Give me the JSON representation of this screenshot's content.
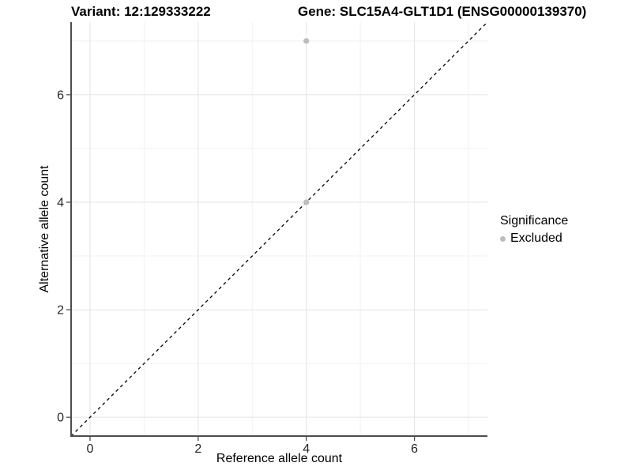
{
  "chart_data": {
    "type": "scatter",
    "title_left": "Variant: 12:129333222",
    "title_right": "Gene: SLC15A4-GLT1D1 (ENSG00000139370)",
    "xlabel": "Reference allele count",
    "ylabel": "Alternative allele count",
    "xlim": [
      -0.35,
      7.35
    ],
    "ylim": [
      -0.35,
      7.35
    ],
    "x_ticks": [
      0,
      2,
      4,
      6
    ],
    "y_ticks": [
      0,
      2,
      4,
      6
    ],
    "x_minor": [
      1,
      3,
      5,
      7
    ],
    "y_minor": [
      1,
      3,
      5,
      7
    ],
    "grid": true,
    "points": [
      {
        "x": 4,
        "y": 4,
        "series": "Excluded"
      },
      {
        "x": 4,
        "y": 7,
        "series": "Excluded"
      }
    ],
    "point_radius": 3.6,
    "identity_line": {
      "slope": 1,
      "intercept": 0,
      "style": "dashed"
    },
    "legend": {
      "position": "right",
      "title": "Significance",
      "items": [
        {
          "label": "Excluded",
          "color": "#bdbdbd"
        }
      ]
    },
    "colors": {
      "background": "#ffffff",
      "grid_major": "#e4e4e4",
      "grid_minor": "#f1f1f1",
      "axis": "#4d4d4d",
      "tick_text": "#262626",
      "abline": "#000000",
      "point": "#bdbdbd"
    }
  }
}
